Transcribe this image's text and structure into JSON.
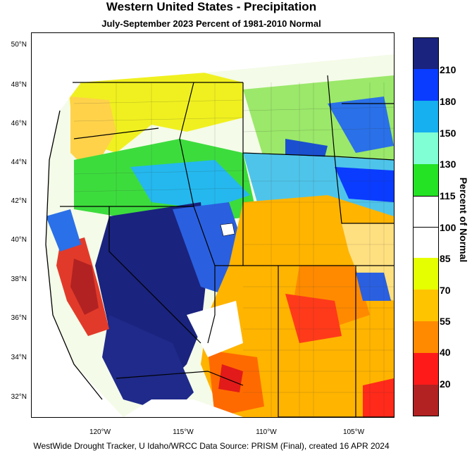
{
  "title": "Western United States - Precipitation",
  "subtitle": "July-September 2023  Percent of 1981-2010 Normal",
  "latitude_labels": [
    "50°N",
    "48°N",
    "46°N",
    "44°N",
    "42°N",
    "40°N",
    "38°N",
    "36°N",
    "34°N",
    "32°N"
  ],
  "longitude_labels": [
    "120°W",
    "115°W",
    "110°W",
    "105°W"
  ],
  "legend": {
    "title": "Percent of Normal",
    "ticks": [
      "210",
      "180",
      "150",
      "130",
      "115",
      "100",
      "85",
      "70",
      "55",
      "40",
      "20"
    ],
    "colors": [
      "#1a237e",
      "#0a3cff",
      "#16aff0",
      "#80ffd4",
      "#24e224",
      "#ffffff",
      "#ffffff",
      "#e6ff00",
      "#ffc400",
      "#ff8a00",
      "#ff1a1a",
      "#b22222"
    ]
  },
  "footer": "WestWide Drought Tracker, U Idaho/WRCC Data Source: PRISM (Final), created 16 APR 2024"
}
